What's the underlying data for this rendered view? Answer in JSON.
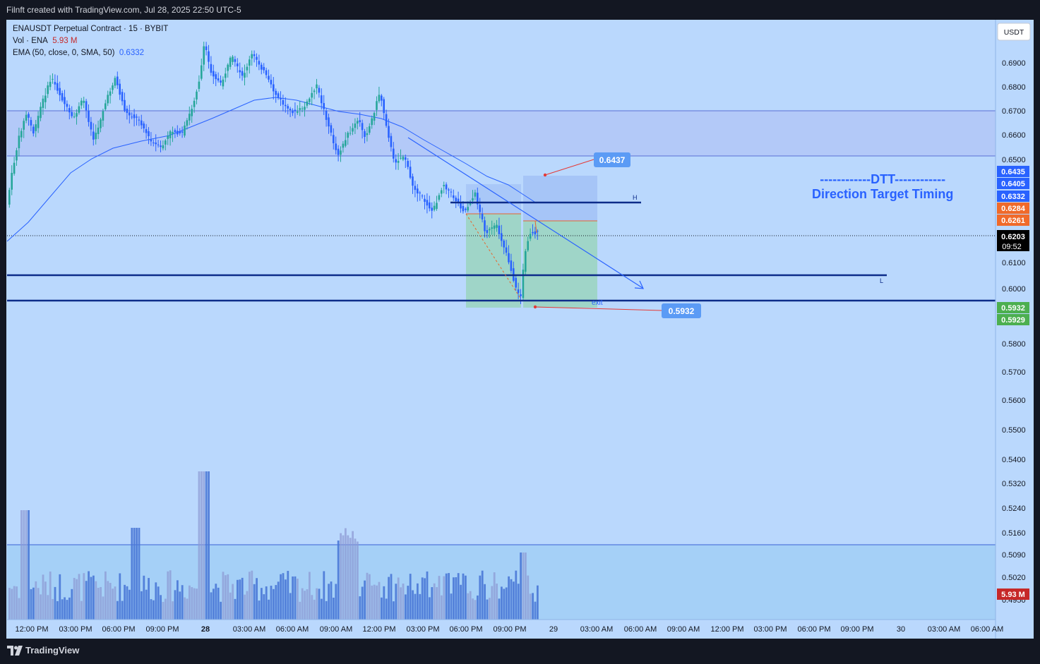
{
  "header": {
    "caption": "Filnft created with TradingView.com, Jul 28, 2025 22:50 UTC-5"
  },
  "footer": {
    "brand": "TradingView"
  },
  "legend": {
    "symbol_line": "ENAUSDT Perpetual Contract · 15 · BYBIT",
    "vol_label": "Vol · ENA",
    "vol_value": "5.93 M",
    "ema_label": "EMA (50, close, 0, SMA, 50)",
    "ema_value": "0.6332"
  },
  "annotations": {
    "dtt_line1": "------------DTT------------",
    "dtt_line2": "Direction Target Timing",
    "h_label": "H",
    "l_label": "L",
    "exit_label": "exit",
    "target_top": "0.6437",
    "target_bottom": "0.5932"
  },
  "axis": {
    "currency": "USDT",
    "current_price": "0.6203",
    "countdown": "09:52",
    "volume_badge": "5.93 M"
  },
  "colors": {
    "background": "#bad8fd",
    "bull": "#26a69a",
    "bear": "#2962ff",
    "ema": "#2962ff",
    "level_line": "#0d2c8a",
    "zone": "#b3c8f7",
    "profit_box": "#9fd5c8",
    "target_box": "#a6c5f7",
    "label_bg": "#5b9bf5",
    "orange_badge": "#f06a2a",
    "green_badge": "#4caf50",
    "red_badge": "#c62828"
  },
  "chart_data": {
    "type": "candlestick",
    "title": "ENAUSDT Perpetual Contract · 15 · BYBIT",
    "y_ticks": [
      "0.6900",
      "0.6800",
      "0.6700",
      "0.6600",
      "0.6500",
      "0.6100",
      "0.6000",
      "0.5800",
      "0.5700",
      "0.5600",
      "0.5500",
      "0.5400",
      "0.5320",
      "0.5240",
      "0.5160",
      "0.5090",
      "0.5020",
      "0.4950"
    ],
    "x_ticks": [
      "12:00 PM",
      "03:00 PM",
      "06:00 PM",
      "09:00 PM",
      "28",
      "03:00 AM",
      "06:00 AM",
      "09:00 AM",
      "12:00 PM",
      "03:00 PM",
      "06:00 PM",
      "09:00 PM",
      "29",
      "03:00 AM",
      "06:00 AM",
      "09:00 AM",
      "12:00 PM",
      "03:00 PM",
      "06:00 PM",
      "09:00 PM",
      "30",
      "03:00 AM",
      "06:00 AM"
    ],
    "price_badges": [
      {
        "value": "0.6435",
        "kind": "blue"
      },
      {
        "value": "0.6405",
        "kind": "blue"
      },
      {
        "value": "0.6332",
        "kind": "blue"
      },
      {
        "value": "0.6284",
        "kind": "orange"
      },
      {
        "value": "0.6261",
        "kind": "orange"
      },
      {
        "value": "0.5932",
        "kind": "green"
      },
      {
        "value": "0.5929",
        "kind": "green"
      }
    ],
    "resistance_zone": [
      0.6519,
      0.67
    ],
    "levels": {
      "H": 0.629,
      "L": 0.6045,
      "support": 0.5955
    },
    "last_price": 0.6203,
    "ema_period": 50,
    "grid": false
  }
}
